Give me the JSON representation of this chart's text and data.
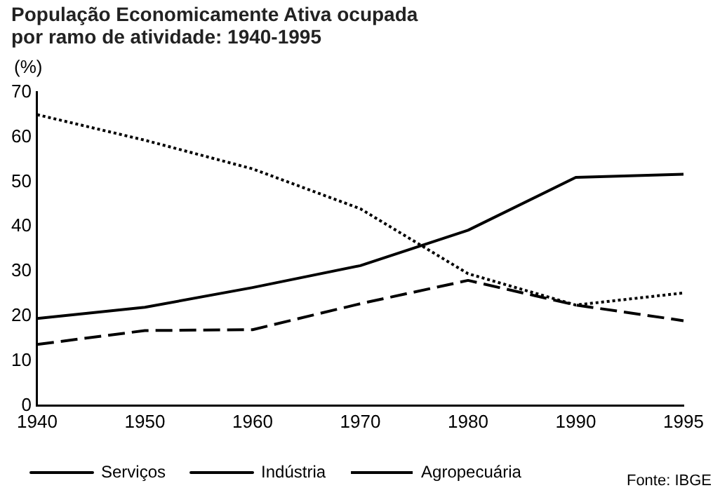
{
  "chart_data": {
    "type": "line",
    "title": "População Economicamente Ativa ocupada por ramo de atividade: 1940-1995",
    "ylabel": "(%)",
    "categories": [
      "1940",
      "1950",
      "1960",
      "1970",
      "1980",
      "1990",
      "1995"
    ],
    "series": [
      {
        "name": "Serviços",
        "color": "#000000",
        "line_style": "solid",
        "values": [
          19.5,
          22,
          26.4,
          31.3,
          39.2,
          51,
          51.7
        ]
      },
      {
        "name": "Indústria",
        "color": "#000000",
        "line_style": "dashed",
        "values": [
          13.7,
          16.8,
          17,
          22.8,
          28,
          22.5,
          19
        ]
      },
      {
        "name": "Agropecuária",
        "color": "#000000",
        "line_style": "dotted",
        "values": [
          65,
          59.3,
          52.9,
          44,
          29.5,
          22.5,
          25.2
        ]
      }
    ],
    "ylim": [
      0,
      70
    ],
    "yticks": [
      0,
      10,
      20,
      30,
      40,
      50,
      60,
      70
    ],
    "grid": false,
    "legend": "bottom",
    "marker": "none",
    "annotations": [
      "Fonte: IBGE"
    ]
  }
}
